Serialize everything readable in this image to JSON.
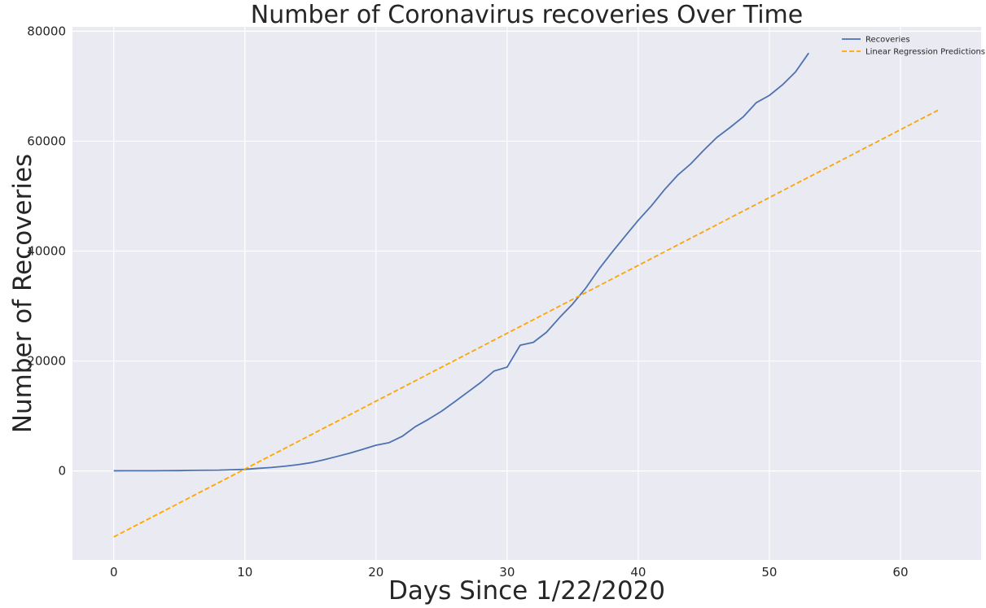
{
  "chart_data": {
    "type": "line",
    "title": "Number of Coronavirus recoveries Over Time",
    "xlabel": "Days Since 1/22/2020",
    "ylabel": "Number of Recoveries",
    "xlim": [
      -3.15,
      66.15
    ],
    "ylim": [
      -16200,
      80800
    ],
    "xticks": [
      0,
      10,
      20,
      30,
      40,
      50,
      60
    ],
    "yticks": [
      0,
      20000,
      40000,
      60000,
      80000
    ],
    "grid": true,
    "legend_position": "top-right",
    "series": [
      {
        "name": "Recoveries",
        "style": "solid",
        "color": "#4c72b0",
        "x": [
          0,
          1,
          2,
          3,
          4,
          5,
          6,
          7,
          8,
          9,
          10,
          11,
          12,
          13,
          14,
          15,
          16,
          17,
          18,
          19,
          20,
          21,
          22,
          23,
          24,
          25,
          26,
          27,
          28,
          29,
          30,
          31,
          32,
          33,
          34,
          35,
          36,
          37,
          38,
          39,
          40,
          41,
          42,
          43,
          44,
          45,
          46,
          47,
          48,
          49,
          50,
          51,
          52,
          53
        ],
        "y": [
          28,
          30,
          36,
          39,
          52,
          61,
          107,
          126,
          143,
          222,
          284,
          472,
          623,
          852,
          1124,
          1487,
          2011,
          2616,
          3244,
          3946,
          4683,
          5150,
          6295,
          8058,
          9395,
          10865,
          12583,
          14352,
          16121,
          18177,
          18890,
          22886,
          23394,
          25227,
          27905,
          30384,
          33277,
          36711,
          39782,
          42716,
          45602,
          48228,
          51170,
          53796,
          55865,
          58358,
          60694,
          62494,
          64404,
          67003,
          68324,
          70251,
          72624,
          76034
        ]
      },
      {
        "name": "Linear Regression Predictions",
        "style": "dashed",
        "color": "#ffa500",
        "x": [
          0,
          63
        ],
        "y": [
          -12000,
          65800
        ]
      }
    ]
  }
}
